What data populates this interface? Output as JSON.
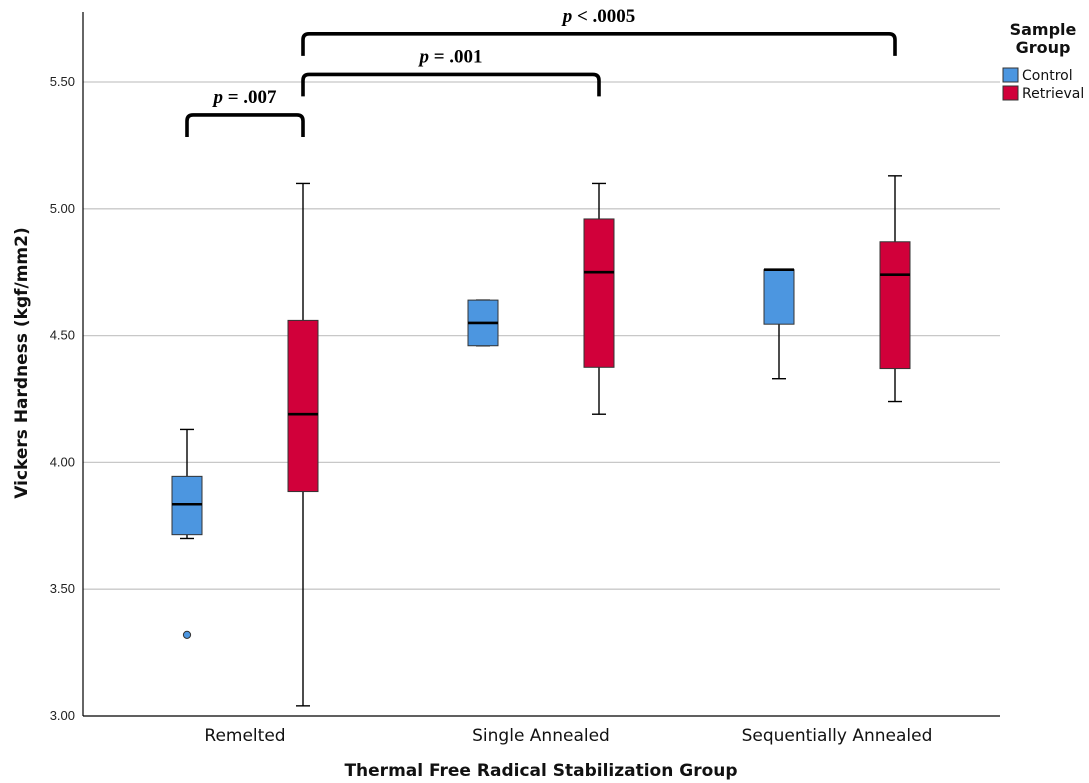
{
  "chart_data": {
    "type": "box",
    "title": "",
    "xlabel": "Thermal Free Radical Stabilization Group",
    "ylabel": "Vickers Hardness (kgf/mm2)",
    "ylim": [
      3.0,
      5.75
    ],
    "yticks": [
      3.0,
      3.5,
      4.0,
      4.5,
      5.0,
      5.5
    ],
    "ytick_labels": [
      "3.00",
      "3.50",
      "4.00",
      "4.50",
      "5.00",
      "5.50"
    ],
    "grid": "horizontal",
    "categories": [
      "Remelted",
      "Single Annealed",
      "Sequentially Annealed"
    ],
    "legend": {
      "title_line1": "Sample",
      "title_line2": "Group",
      "placement": "top-right"
    },
    "series": [
      {
        "name": "Control",
        "color": "#4c96e0",
        "boxes": [
          {
            "category": "Remelted",
            "min": 3.7,
            "q1": 3.715,
            "median": 3.835,
            "q3": 3.945,
            "max": 4.13,
            "outliers": [
              3.32
            ]
          },
          {
            "category": "Single Annealed",
            "min": 4.46,
            "q1": 4.46,
            "median": 4.55,
            "q3": 4.64,
            "max": 4.64,
            "outliers": []
          },
          {
            "category": "Sequentially Annealed",
            "min": 4.33,
            "q1": 4.545,
            "median": 4.76,
            "q3": 4.76,
            "max": 4.76,
            "outliers": []
          }
        ]
      },
      {
        "name": "Retrieval",
        "color": "#d1003a",
        "boxes": [
          {
            "category": "Remelted",
            "min": 3.04,
            "q1": 3.885,
            "median": 4.19,
            "q3": 4.56,
            "max": 5.1,
            "outliers": []
          },
          {
            "category": "Single Annealed",
            "min": 4.19,
            "q1": 4.375,
            "median": 4.75,
            "q3": 4.96,
            "max": 5.1,
            "outliers": []
          },
          {
            "category": "Sequentially Annealed",
            "min": 4.24,
            "q1": 4.37,
            "median": 4.74,
            "q3": 4.87,
            "max": 5.13,
            "outliers": []
          }
        ]
      }
    ],
    "annotations": [
      {
        "label_p": "p",
        "label_rest": " = .007",
        "from": {
          "category": "Remelted",
          "series": "Control"
        },
        "to": {
          "category": "Remelted",
          "series": "Retrieval"
        },
        "level": 5.37
      },
      {
        "label_p": "p",
        "label_rest": " = .001",
        "from": {
          "category": "Remelted",
          "series": "Retrieval"
        },
        "to": {
          "category": "Single Annealed",
          "series": "Retrieval"
        },
        "level": 5.53
      },
      {
        "label_p": "p",
        "label_rest": " < .0005",
        "from": {
          "category": "Remelted",
          "series": "Retrieval"
        },
        "to": {
          "category": "Sequentially Annealed",
          "series": "Retrieval"
        },
        "level": 5.69
      }
    ]
  }
}
